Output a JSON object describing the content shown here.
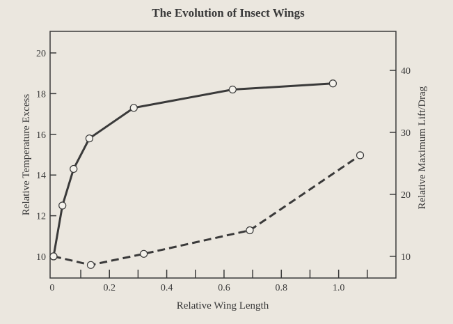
{
  "chart_data": {
    "type": "line",
    "title": "The Evolution of Insect Wings",
    "xlabel": "Relative Wing Length",
    "ylabel_left": "Relative Temperature Excess",
    "ylabel_right": "Relative Maximum Lift/Drag",
    "xlim": [
      -0.007,
      1.2
    ],
    "ylim_left": [
      8.94,
      21.06
    ],
    "ylim_right": [
      6.5,
      46.3
    ],
    "x_ticks": [
      0,
      0.2,
      0.4,
      0.6,
      0.8,
      1.0
    ],
    "x_tick_labels": [
      "0",
      "0.2",
      "0.4",
      "0.6",
      "0.8",
      "1.0"
    ],
    "x_minor_ticks": [
      0.1,
      0.2,
      0.3,
      0.4,
      0.5,
      0.6,
      0.7,
      0.8,
      0.9,
      1.0,
      1.1
    ],
    "y_left_ticks": [
      10,
      12,
      14,
      16,
      18,
      20
    ],
    "y_right_ticks": [
      10,
      20,
      30,
      40
    ],
    "grid": false,
    "series": [
      {
        "axis": "left",
        "style": "solid",
        "color": "#3a3a3a",
        "x": [
          0.005,
          0.036,
          0.075,
          0.13,
          0.285,
          0.63,
          0.98
        ],
        "y": [
          10.0,
          12.5,
          14.3,
          15.8,
          17.3,
          18.2,
          18.5
        ]
      },
      {
        "axis": "right",
        "style": "dashed",
        "color": "#3a3a3a",
        "x": [
          0.005,
          0.135,
          0.32,
          0.69,
          1.075
        ],
        "y": [
          10.0,
          8.6,
          10.4,
          14.2,
          26.3
        ]
      }
    ]
  }
}
